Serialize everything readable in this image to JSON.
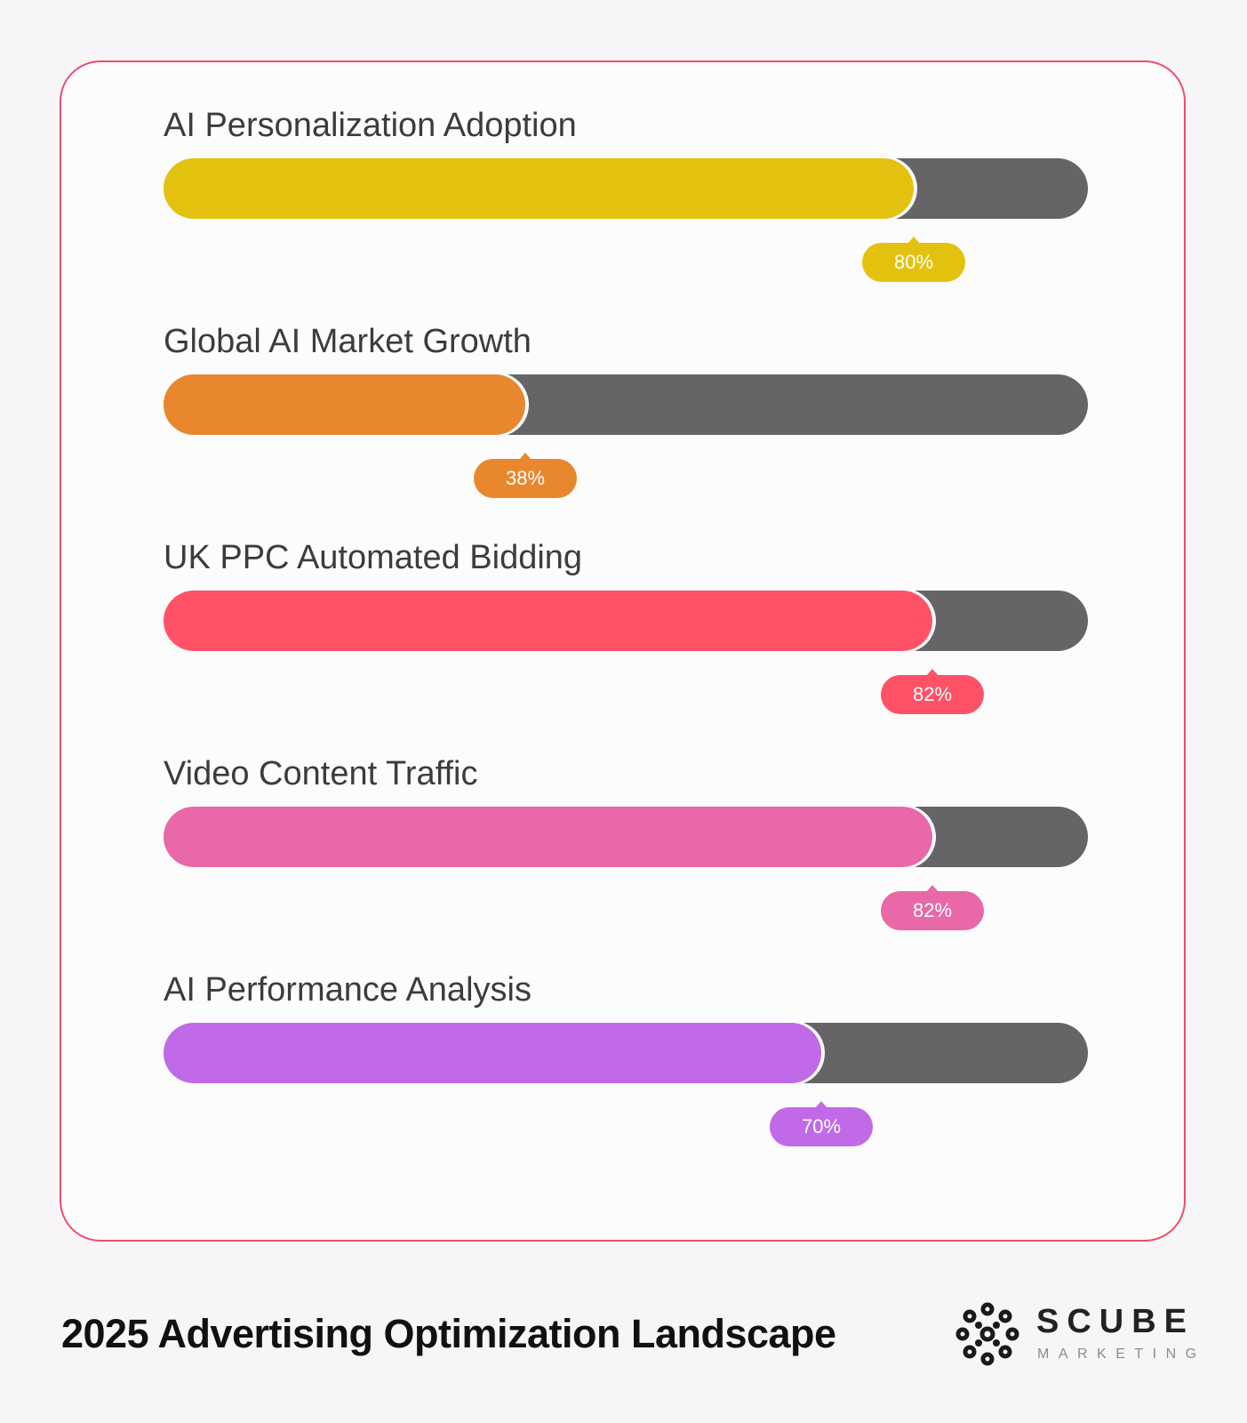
{
  "chart_data": {
    "type": "bar",
    "orientation": "horizontal",
    "categories": [
      "AI Personalization Adoption",
      "Global AI Market Growth",
      "UK PPC Automated Bidding",
      "Video Content Traffic",
      "AI Performance Analysis"
    ],
    "values": [
      80,
      38,
      82,
      82,
      70
    ],
    "value_labels": [
      "80%",
      "38%",
      "82%",
      "82%",
      "70%"
    ],
    "colors": [
      "#e3c20f",
      "#e8872e",
      "#ff5266",
      "#e868a8",
      "#c06ae8"
    ],
    "track_color": "#676467",
    "xlim": [
      0,
      100
    ],
    "unit": "%",
    "grid": false,
    "legend": "none"
  },
  "footer": {
    "title": "2025 Advertising Optimization Landscape"
  },
  "brand": {
    "name": "SCUBE",
    "tagline": "MARKETING",
    "logo_icon": "scube-logo-icon"
  }
}
